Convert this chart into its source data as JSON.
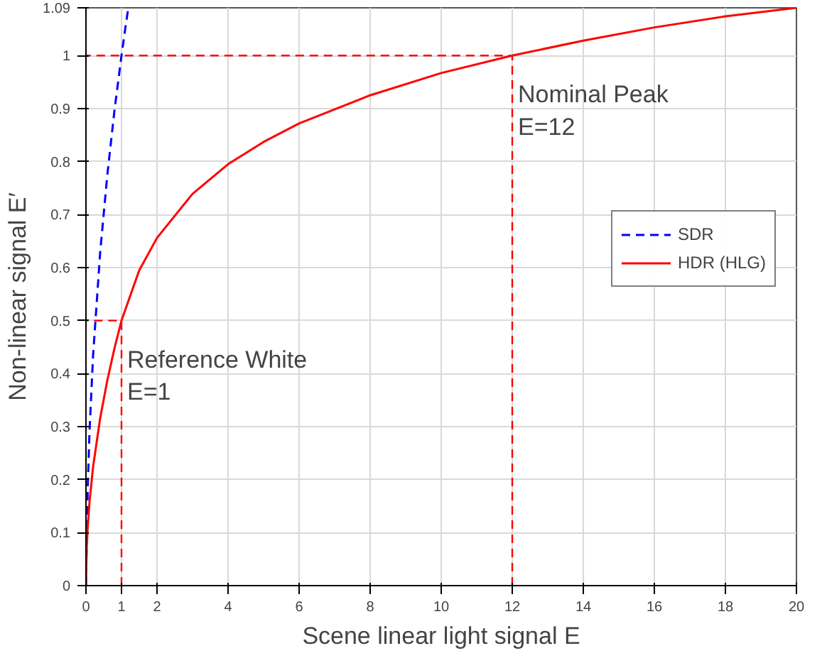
{
  "chart_data": {
    "type": "line",
    "xlabel": "Scene linear light signal E",
    "ylabel": "Non-linear signal E′",
    "xlim": [
      0,
      20
    ],
    "ylim": [
      0,
      1.09
    ],
    "xticks": [
      0,
      1,
      2,
      4,
      6,
      8,
      10,
      12,
      14,
      16,
      18,
      20
    ],
    "yticks": [
      0,
      0.1,
      0.2,
      0.3,
      0.4,
      0.5,
      0.6,
      0.7,
      0.8,
      0.9,
      1,
      1.09
    ],
    "grid": true,
    "legend": "right",
    "marker": "none",
    "series": [
      {
        "name": "SDR",
        "color": "#0000ff",
        "line_style": "dashed",
        "x": [
          0,
          0.05,
          0.1,
          0.2,
          0.4,
          0.6,
          0.8,
          1.0,
          1.1,
          1.19
        ],
        "values": [
          0,
          0.186,
          0.291,
          0.434,
          0.629,
          0.774,
          0.895,
          1.0,
          1.048,
          1.089
        ]
      },
      {
        "name": "HDR (HLG)",
        "color": "#ff0000",
        "line_style": "solid",
        "x": [
          0,
          0.02,
          0.05,
          0.1,
          0.2,
          0.4,
          0.6,
          0.8,
          1,
          1.5,
          2,
          3,
          4,
          5,
          6,
          8,
          10,
          12,
          14,
          16,
          18,
          20
        ],
        "values": [
          0,
          0.071,
          0.112,
          0.158,
          0.224,
          0.316,
          0.387,
          0.447,
          0.5,
          0.595,
          0.656,
          0.739,
          0.795,
          0.837,
          0.872,
          0.925,
          0.967,
          1.0,
          1.028,
          1.053,
          1.074,
          1.09
        ]
      },
      {
        "color": "#ff0000",
        "line_style": "dashed",
        "x": [
          1,
          1,
          0
        ],
        "values": [
          0,
          0.5,
          0.5
        ]
      },
      {
        "color": "#ff0000",
        "line_style": "dashed",
        "x": [
          12,
          12,
          0
        ],
        "values": [
          0,
          1,
          1
        ]
      }
    ],
    "annotations": [
      {
        "text": "Reference White\nE=1",
        "x": 1,
        "y": 0.5
      },
      {
        "text": "Nominal Peak\nE=12",
        "x": 12,
        "y": 1
      }
    ]
  }
}
